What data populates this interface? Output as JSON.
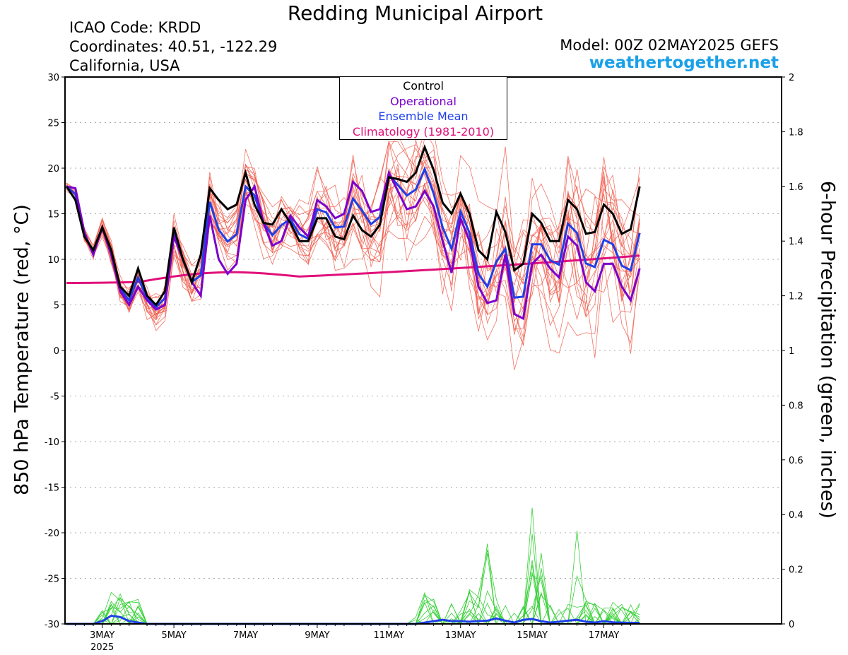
{
  "header": {
    "title": "Redding Municipal Airport",
    "icao": "ICAO Code: KRDD",
    "coords": "Coordinates: 40.51, -122.29",
    "region": "California, USA",
    "model": "Model: 00Z 02MAY2025 GEFS",
    "site": "weathertogether.net"
  },
  "legend": {
    "control": "Control",
    "operational": "Operational",
    "mean": "Ensemble Mean",
    "clim": "Climatology (1981-2010)"
  },
  "colors": {
    "control": "#000000",
    "operational": "#7a00cc",
    "mean": "#1f3fe8",
    "clim": "#e0107a",
    "members": "#f05a4a",
    "precip_members": "#35d035",
    "precip_mean": "#1f3fe8"
  },
  "chart_data": {
    "type": "line",
    "ylabel": "850 hPa Temperature (red, °C)",
    "y2label": "6-hour Precipitation (green, inches)",
    "ylim": [
      -30,
      30
    ],
    "y2lim": [
      0,
      2
    ],
    "yticks": [
      "30",
      "25",
      "20",
      "15",
      "10",
      "5",
      "0",
      "-5",
      "-10",
      "-15",
      "-20",
      "-25",
      "-30"
    ],
    "y2ticks": [
      "2",
      "1.8",
      "1.6",
      "1.4",
      "1.2",
      "1",
      "0.8",
      "0.6",
      "0.4",
      "0.2",
      "0"
    ],
    "grid": true,
    "x_unit": "6-hour steps from 00Z 02MAY2025",
    "xticks": [
      {
        "step": 4,
        "label": "3MAY",
        "sub": "2025"
      },
      {
        "step": 12,
        "label": "5MAY",
        "sub": ""
      },
      {
        "step": 20,
        "label": "7MAY",
        "sub": ""
      },
      {
        "step": 28,
        "label": "9MAY",
        "sub": ""
      },
      {
        "step": 36,
        "label": "11MAY",
        "sub": ""
      },
      {
        "step": 44,
        "label": "13MAY",
        "sub": ""
      },
      {
        "step": 52,
        "label": "15MAY",
        "sub": ""
      },
      {
        "step": 60,
        "label": "17MAY",
        "sub": ""
      }
    ],
    "control": [
      18,
      16.5,
      12.5,
      11,
      13.5,
      11,
      7,
      6,
      9,
      6,
      5,
      6.5,
      13.5,
      10,
      7.5,
      10.5,
      17.8,
      16.5,
      15.5,
      16,
      19.5,
      16,
      14,
      13.8,
      15.5,
      14,
      12,
      12,
      14.5,
      14.5,
      12.5,
      12.2,
      14.8,
      13.2,
      12.5,
      13.8,
      19,
      18.8,
      18.5,
      19.5,
      22.3,
      19.8,
      16.2,
      15,
      17.2,
      15,
      11,
      10,
      15.2,
      13,
      8.8,
      9.5,
      15,
      14,
      12,
      12,
      16.5,
      15.5,
      12.8,
      13,
      16,
      15,
      12.8,
      13.3,
      18
    ],
    "operational": [
      18,
      17.8,
      13,
      10.5,
      13.5,
      10.5,
      6.5,
      5,
      7,
      5.5,
      4.5,
      5,
      12.5,
      10,
      7.5,
      6,
      14.8,
      10,
      8.4,
      9.5,
      16.5,
      18,
      14,
      11.5,
      12,
      14.8,
      13.5,
      12.5,
      16.5,
      15.8,
      14.5,
      15,
      18.5,
      17.5,
      15.2,
      15.5,
      19.5,
      17.5,
      15.5,
      15.8,
      17.5,
      15.8,
      12,
      8.5,
      14.5,
      12,
      7,
      5.2,
      5.5,
      10.5,
      4,
      3.5,
      9.5,
      10.5,
      9,
      8,
      12.5,
      11.5,
      7.5,
      6.5,
      9.5,
      9.5,
      7,
      5.5,
      9
    ]
  }
}
